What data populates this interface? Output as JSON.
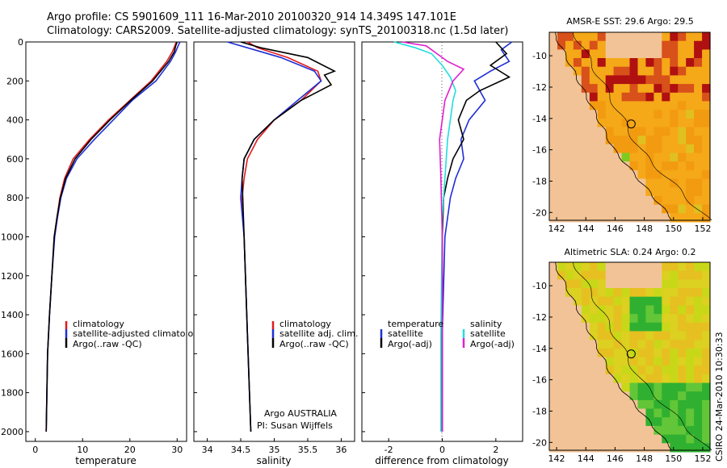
{
  "header": {
    "line1": "Argo profile: CS 5901609_111 16-Mar-2010 20100320_914 14.349S 147.101E",
    "line2": "Climatology: CARS2009. Satellite-adjusted climatology: synTS_20100318.nc (1.5d later)"
  },
  "footer": {
    "credit": "CSIRO 24-Mar-2010 10:30:33",
    "org": "Argo AUSTRALIA",
    "pi": "PI: Susan Wijffels"
  },
  "colors": {
    "climatology": "#e31a1c",
    "satellite": "#1f2fd6",
    "argo": "#000000",
    "sat_salinity": "#22dddd",
    "argo_salinity": "#e020d0",
    "land": "#f2c396",
    "zero_line": "#555555"
  },
  "chart_data": [
    {
      "type": "line",
      "title": "",
      "xlabel": "temperature",
      "ylabel": "",
      "xlim": [
        -2,
        32
      ],
      "ylim": [
        0,
        2050
      ],
      "y_inverted": true,
      "xticks": [
        0,
        10,
        20,
        30
      ],
      "yticks": [
        0,
        200,
        400,
        600,
        800,
        1000,
        1200,
        1400,
        1600,
        1800,
        2000
      ],
      "legend": [
        "climatology",
        "satellite-adjusted climatology",
        "Argo(..raw -QC)"
      ],
      "series": [
        {
          "name": "climatology",
          "color": "#e31a1c",
          "x": [
            29.8,
            29.5,
            29.0,
            27.8,
            24.5,
            20.0,
            15.5,
            11.5,
            8.0,
            6.2,
            5.2,
            4.6,
            4.0,
            3.5,
            3.0,
            2.6,
            2.3
          ],
          "y": [
            0,
            20,
            50,
            100,
            200,
            300,
            400,
            500,
            600,
            700,
            800,
            900,
            1000,
            1200,
            1400,
            1600,
            2000
          ]
        },
        {
          "name": "satellite-adjusted climatology",
          "color": "#1f2fd6",
          "x": [
            30.6,
            30.2,
            29.7,
            28.6,
            25.5,
            20.5,
            16.5,
            12.5,
            8.8,
            6.6,
            5.4,
            4.7,
            4.1,
            3.5,
            3.0,
            2.6,
            2.3
          ],
          "y": [
            0,
            20,
            50,
            100,
            200,
            300,
            400,
            500,
            600,
            700,
            800,
            900,
            1000,
            1200,
            1400,
            1600,
            2000
          ]
        },
        {
          "name": "Argo(..raw -QC)",
          "color": "#000000",
          "x": [
            30.0,
            29.7,
            29.4,
            28.2,
            24.8,
            20.2,
            15.8,
            11.8,
            8.4,
            6.4,
            5.3,
            4.6,
            4.0,
            3.5,
            3.0,
            2.6,
            2.3
          ],
          "y": [
            0,
            20,
            50,
            100,
            200,
            300,
            400,
            500,
            600,
            700,
            800,
            900,
            1000,
            1200,
            1400,
            1600,
            2000
          ]
        }
      ]
    },
    {
      "type": "line",
      "title": "",
      "xlabel": "salinity",
      "ylabel": "",
      "xlim": [
        33.8,
        36.2
      ],
      "ylim": [
        0,
        2050
      ],
      "y_inverted": true,
      "xticks": [
        34,
        34.5,
        35,
        35.5,
        36
      ],
      "legend": [
        "climatology",
        "satellite adj. clim.",
        "Argo(..raw -QC)"
      ],
      "series": [
        {
          "name": "climatology",
          "color": "#e31a1c",
          "x": [
            34.6,
            34.75,
            35.2,
            35.65,
            35.7,
            35.4,
            35.0,
            34.75,
            34.6,
            34.55,
            34.52,
            34.55,
            34.6,
            34.65
          ],
          "y": [
            0,
            30,
            80,
            150,
            200,
            300,
            400,
            500,
            600,
            700,
            800,
            1000,
            1500,
            2000
          ]
        },
        {
          "name": "satellite adj. clim.",
          "color": "#1f2fd6",
          "x": [
            34.3,
            34.6,
            35.1,
            35.6,
            35.7,
            35.35,
            35.0,
            34.7,
            34.55,
            34.52,
            34.5,
            34.55,
            34.6,
            34.65
          ],
          "y": [
            0,
            30,
            80,
            150,
            200,
            300,
            400,
            500,
            600,
            700,
            800,
            1000,
            1500,
            2000
          ]
        },
        {
          "name": "Argo(..raw -QC)",
          "color": "#000000",
          "x": [
            34.5,
            34.8,
            35.5,
            35.9,
            35.75,
            35.85,
            35.4,
            35.0,
            34.7,
            34.55,
            34.52,
            34.55,
            34.6,
            34.65
          ],
          "y": [
            0,
            30,
            80,
            150,
            170,
            220,
            300,
            400,
            500,
            600,
            700,
            1000,
            1500,
            2000
          ]
        }
      ]
    },
    {
      "type": "line",
      "title": "",
      "xlabel": "difference from climatology",
      "ylabel": "",
      "xlim": [
        -3,
        3
      ],
      "ylim": [
        0,
        2050
      ],
      "y_inverted": true,
      "xticks": [
        -2,
        0,
        2
      ],
      "legend": [
        "temperature",
        "satellite",
        "Argo(-adj)",
        "salinity",
        "satellite",
        "Argo(-adj)"
      ],
      "series": [
        {
          "name": "temperature satellite",
          "color": "#1f2fd6",
          "x": [
            2.6,
            2.2,
            2.5,
            1.8,
            1.2,
            1.6,
            1.0,
            0.7,
            0.8,
            0.5,
            0.3,
            0.1,
            0.0,
            0.0
          ],
          "y": [
            0,
            40,
            100,
            150,
            200,
            300,
            400,
            500,
            600,
            700,
            800,
            1000,
            1500,
            2000
          ]
        },
        {
          "name": "temperature Argo(-adj)",
          "color": "#000000",
          "x": [
            2.0,
            2.4,
            1.8,
            2.5,
            1.4,
            0.9,
            0.6,
            0.8,
            0.4,
            0.2,
            0.05,
            0.0,
            0.0,
            0.0
          ],
          "y": [
            0,
            60,
            120,
            180,
            250,
            300,
            400,
            500,
            600,
            700,
            800,
            1000,
            1500,
            2000
          ]
        },
        {
          "name": "salinity satellite",
          "color": "#22dddd",
          "x": [
            -1.8,
            -1.0,
            -0.4,
            0.0,
            0.3,
            0.5,
            0.4,
            0.3,
            0.2,
            0.1,
            0.0,
            -0.05,
            -0.05
          ],
          "y": [
            0,
            30,
            60,
            120,
            180,
            250,
            300,
            400,
            500,
            700,
            900,
            1500,
            2000
          ]
        },
        {
          "name": "salinity Argo(-adj)",
          "color": "#e020d0",
          "x": [
            -1.5,
            -0.6,
            -0.2,
            0.2,
            0.8,
            0.4,
            0.1,
            0.0,
            -0.1,
            -0.05,
            0.0,
            0.0
          ],
          "y": [
            0,
            20,
            60,
            100,
            140,
            200,
            300,
            400,
            500,
            700,
            1000,
            2000
          ]
        }
      ]
    },
    {
      "type": "heatmap",
      "title": "AMSR-E SST: 29.6 Argo: 29.5",
      "xticks": [
        142,
        144,
        146,
        148,
        150,
        152
      ],
      "yticks": [
        -10,
        -12,
        -14,
        -16,
        -18,
        -20
      ],
      "xlim": [
        141.5,
        152.5
      ],
      "ylim": [
        -20.5,
        -8.5
      ],
      "argo_marker": {
        "lon": 147.101,
        "lat": -14.349
      }
    },
    {
      "type": "heatmap",
      "title": "Altimetric SLA: 0.24 Argo: 0.2",
      "xticks": [
        142,
        144,
        146,
        148,
        150,
        152
      ],
      "yticks": [
        -10,
        -12,
        -14,
        -16,
        -18,
        -20
      ],
      "xlim": [
        141.5,
        152.5
      ],
      "ylim": [
        -20.5,
        -8.5
      ],
      "argo_marker": {
        "lon": 147.101,
        "lat": -14.349
      }
    }
  ]
}
